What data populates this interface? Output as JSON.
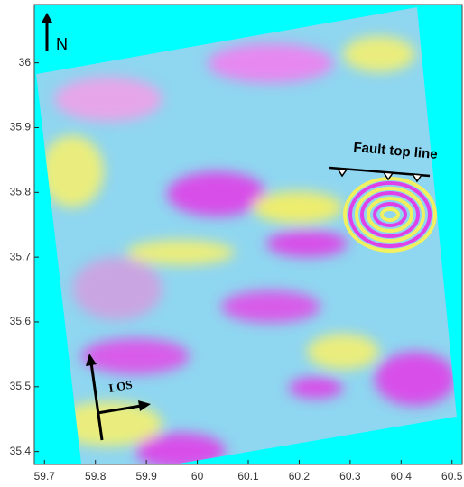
{
  "chart_data": {
    "type": "map",
    "annotations": [
      "N",
      "LOS",
      "Fault top line"
    ],
    "xlim": [
      59.68,
      60.52
    ],
    "ylim": [
      35.38,
      36.09
    ],
    "xticks": [
      59.7,
      59.8,
      59.9,
      60,
      60.1,
      60.2,
      60.3,
      60.4,
      60.5
    ],
    "yticks": [
      35.4,
      35.5,
      35.6,
      35.7,
      35.8,
      35.9,
      36
    ],
    "background": "#00ffff"
  }
}
